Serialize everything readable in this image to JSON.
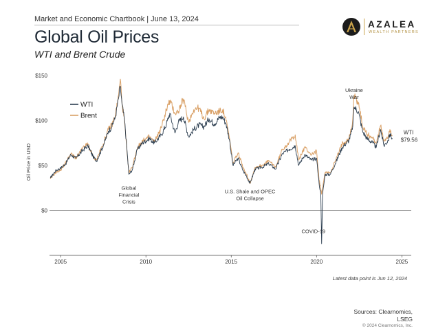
{
  "header": {
    "chartbook": "Market and Economic Chartbook | June 13, 2024",
    "title": "Global Oil Prices",
    "subtitle": "WTI and Brent Crude"
  },
  "logo": {
    "name": "AZALEA",
    "tagline": "WEALTH PARTNERS",
    "mark_letter": "A",
    "colors": {
      "mark": "#1b1b1b",
      "gold": "#c9a24a"
    }
  },
  "footer": {
    "note": "Latest data point is Jun 12, 2024",
    "sources_line1": "Sources: Clearnomics,",
    "sources_line2": "LSEG",
    "copyright": "© 2024 Clearnomics, Inc."
  },
  "chart_data": {
    "type": "line",
    "title": "Global Oil Prices",
    "subtitle": "WTI and Brent Crude",
    "xlabel": "",
    "ylabel": "Oil Price in USD",
    "xlim": [
      2004.35,
      2025.55
    ],
    "ylim": [
      -50,
      150
    ],
    "y_ticks": [
      0,
      50,
      100,
      150
    ],
    "y_tick_labels": [
      "$0",
      "$50",
      "$100",
      "$150"
    ],
    "x_ticks": [
      2005,
      2010,
      2015,
      2020,
      2025
    ],
    "x_tick_labels": [
      "2005",
      "2010",
      "2015",
      "2020",
      "2025"
    ],
    "grid": false,
    "legend": "top-left",
    "colors": {
      "WTI": "#2c3e50",
      "Brent": "#d9a066",
      "zero_line": "#777777"
    },
    "series": [
      {
        "name": "WTI",
        "x": [
          2004.4,
          2004.7,
          2005.0,
          2005.3,
          2005.6,
          2005.9,
          2006.3,
          2006.6,
          2006.9,
          2007.1,
          2007.5,
          2007.8,
          2008.0,
          2008.2,
          2008.4,
          2008.5,
          2008.6,
          2008.75,
          2008.9,
          2009.0,
          2009.2,
          2009.5,
          2009.8,
          2010.2,
          2010.5,
          2010.9,
          2011.2,
          2011.4,
          2011.7,
          2011.9,
          2012.2,
          2012.5,
          2012.8,
          2013.1,
          2013.4,
          2013.7,
          2014.0,
          2014.3,
          2014.5,
          2014.7,
          2014.9,
          2015.1,
          2015.4,
          2015.7,
          2015.9,
          2016.1,
          2016.4,
          2016.8,
          2017.2,
          2017.6,
          2018.0,
          2018.4,
          2018.75,
          2018.95,
          2019.3,
          2019.7,
          2020.0,
          2020.15,
          2020.25,
          2020.3,
          2020.35,
          2020.5,
          2020.8,
          2021.1,
          2021.5,
          2021.9,
          2022.1,
          2022.2,
          2022.45,
          2022.7,
          2022.95,
          2023.3,
          2023.5,
          2023.75,
          2023.95,
          2024.2,
          2024.3,
          2024.45
        ],
        "y": [
          36,
          44,
          47,
          52,
          62,
          58,
          67,
          72,
          60,
          55,
          72,
          88,
          93,
          103,
          125,
          138,
          118,
          100,
          65,
          40,
          45,
          68,
          75,
          80,
          75,
          84,
          96,
          108,
          86,
          98,
          104,
          82,
          90,
          95,
          93,
          102,
          96,
          103,
          104,
          96,
          78,
          50,
          58,
          44,
          38,
          30,
          46,
          48,
          52,
          46,
          63,
          68,
          72,
          50,
          62,
          56,
          58,
          30,
          18,
          -37,
          17,
          40,
          40,
          52,
          70,
          78,
          90,
          115,
          110,
          88,
          80,
          75,
          70,
          90,
          72,
          78,
          85,
          79.56
        ]
      },
      {
        "name": "Brent",
        "x": [
          2004.4,
          2004.7,
          2005.0,
          2005.3,
          2005.6,
          2005.9,
          2006.3,
          2006.6,
          2006.9,
          2007.1,
          2007.5,
          2007.8,
          2008.0,
          2008.2,
          2008.4,
          2008.5,
          2008.6,
          2008.75,
          2008.9,
          2009.0,
          2009.2,
          2009.5,
          2009.8,
          2010.2,
          2010.5,
          2010.9,
          2011.2,
          2011.4,
          2011.7,
          2011.9,
          2012.2,
          2012.5,
          2012.8,
          2013.1,
          2013.4,
          2013.7,
          2014.0,
          2014.3,
          2014.5,
          2014.7,
          2014.9,
          2015.1,
          2015.4,
          2015.7,
          2015.9,
          2016.1,
          2016.4,
          2016.8,
          2017.2,
          2017.6,
          2018.0,
          2018.4,
          2018.75,
          2018.95,
          2019.3,
          2019.7,
          2020.0,
          2020.15,
          2020.25,
          2020.3,
          2020.35,
          2020.5,
          2020.8,
          2021.1,
          2021.5,
          2021.9,
          2022.1,
          2022.2,
          2022.45,
          2022.7,
          2022.95,
          2023.3,
          2023.5,
          2023.75,
          2023.95,
          2024.2,
          2024.3,
          2024.45
        ],
        "y": [
          35,
          42,
          45,
          53,
          63,
          58,
          69,
          74,
          60,
          56,
          74,
          90,
          95,
          105,
          128,
          146,
          120,
          98,
          62,
          42,
          48,
          70,
          77,
          82,
          76,
          92,
          112,
          122,
          108,
          110,
          124,
          98,
          112,
          114,
          102,
          112,
          108,
          110,
          112,
          100,
          80,
          52,
          64,
          48,
          40,
          30,
          48,
          50,
          55,
          48,
          68,
          76,
          84,
          56,
          70,
          62,
          66,
          34,
          24,
          18,
          25,
          42,
          42,
          55,
          74,
          80,
          96,
          128,
          120,
          94,
          85,
          80,
          75,
          94,
          77,
          83,
          90,
          83
        ]
      }
    ],
    "annotations": [
      {
        "text": "Global Financial Crisis",
        "lines": [
          "Global",
          "Financial",
          "Crisis"
        ],
        "x": 2009.0,
        "y": 40
      },
      {
        "text": "U.S. Shale and OPEC Oil Collapse",
        "lines": [
          "U.S. Shale and OPEC",
          "Oil Collapse"
        ],
        "x": 2016.1,
        "y": 30
      },
      {
        "text": "COVID-19",
        "lines": [
          "COVID-19"
        ],
        "x": 2020.3,
        "y": -37
      },
      {
        "text": "Ukraine War",
        "lines": [
          "Ukraine",
          "War"
        ],
        "x": 2022.2,
        "y": 128
      }
    ],
    "end_label": {
      "series": "WTI",
      "value_label": "$79.56"
    }
  }
}
